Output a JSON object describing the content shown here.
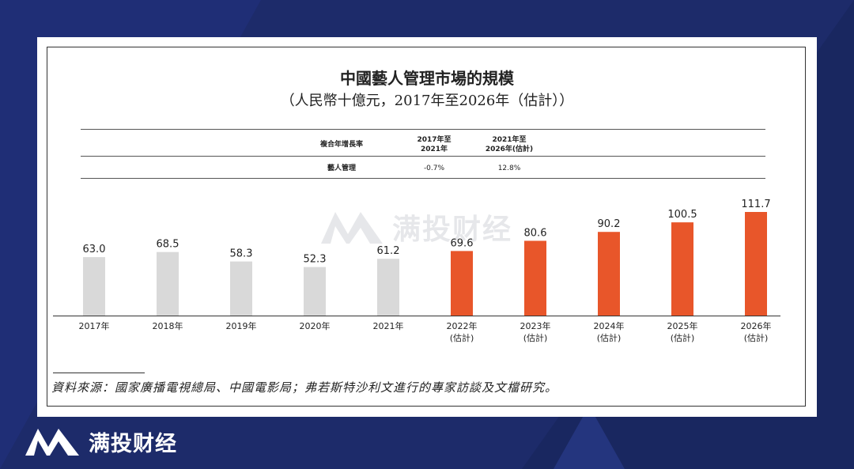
{
  "brand": {
    "name": "满投财经",
    "logo_icon": "m-logo-icon"
  },
  "watermark": {
    "text": "满投财经"
  },
  "chart_data": {
    "type": "bar",
    "title": "中國藝人管理市場的規模",
    "subtitle": "（人民幣十億元，2017年至2026年（估計））",
    "categories": [
      "2017年",
      "2018年",
      "2019年",
      "2020年",
      "2021年",
      "2022年\n(估計)",
      "2023年\n(估計)",
      "2024年\n(估計)",
      "2025年\n(估計)",
      "2026年\n(估計)"
    ],
    "values": [
      63.0,
      68.5,
      58.3,
      52.3,
      61.2,
      69.6,
      80.6,
      90.2,
      100.5,
      111.7
    ],
    "value_labels": [
      "63.0",
      "68.5",
      "58.3",
      "52.3",
      "61.2",
      "69.6",
      "80.6",
      "90.2",
      "100.5",
      "111.7"
    ],
    "ylim": [
      0,
      111.7
    ],
    "colors": {
      "historical": "#d9d9d9",
      "forecast": "#e8562a"
    },
    "cagr_table": {
      "header": [
        "複合年增長率",
        "2017年至\n2021年",
        "2021年至\n2026年(估計)"
      ],
      "rows": [
        [
          "藝人管理",
          "-0.7%",
          "12.8%"
        ]
      ]
    }
  },
  "source": "資料來源：國家廣播電視總局、中國電影局；弗若斯特沙利文進行的專家訪談及文檔研究。"
}
